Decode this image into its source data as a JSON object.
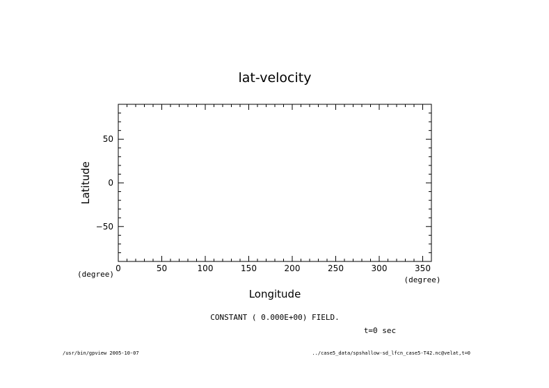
{
  "chart_data": {
    "type": "heatmap",
    "title": "lat-velocity",
    "xlabel": "Longitude",
    "ylabel": "Latitude",
    "x_unit": "(degree)",
    "y_unit": "(degree)",
    "xlim": [
      0,
      360
    ],
    "ylim": [
      -90,
      90
    ],
    "x_ticks": [
      0,
      50,
      100,
      150,
      200,
      250,
      300,
      350
    ],
    "y_ticks": [
      -50,
      0,
      50
    ],
    "x_tick_labels": [
      "0",
      "50",
      "100",
      "150",
      "200",
      "250",
      "300",
      "350"
    ],
    "y_tick_labels": [
      "−50",
      "0",
      "50"
    ],
    "x_minor_step": 10,
    "y_minor_step": 10,
    "field_value": 0,
    "grid": false
  },
  "annotations": {
    "field_note": "CONSTANT ( 0.000E+00) FIELD.",
    "time": "t=0 sec",
    "footer_left": "/usr/bin/gpview  2005-10-07",
    "footer_right": "../case5_data/spshallow-sd_lfcn_case5-T42.nc@velat,t=0"
  }
}
